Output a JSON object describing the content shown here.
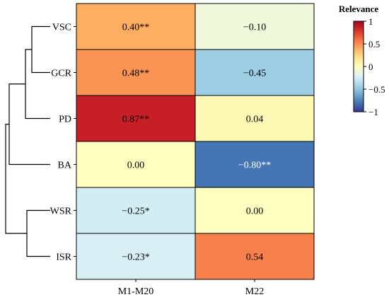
{
  "chart_data": {
    "type": "heatmap",
    "columns": [
      "M1-M20",
      "M22"
    ],
    "rows": [
      "VSC",
      "GCR",
      "PD",
      "BA",
      "WSR",
      "ISR"
    ],
    "values": [
      [
        0.4,
        -0.1
      ],
      [
        0.48,
        -0.45
      ],
      [
        0.87,
        0.04
      ],
      [
        0.0,
        -0.8
      ],
      [
        -0.25,
        0.0
      ],
      [
        -0.23,
        0.54
      ]
    ],
    "labels": [
      [
        "0.40**",
        "−0.10"
      ],
      [
        "0.48**",
        "−0.45"
      ],
      [
        "0.87**",
        "0.04"
      ],
      [
        "0.00",
        "−0.80**"
      ],
      [
        "−0.25*",
        "0.00"
      ],
      [
        "−0.23*",
        "0.54"
      ]
    ],
    "colorbar": {
      "title": "Relevance",
      "range": [
        -1,
        1
      ],
      "colormap": "RdYlBu_r",
      "ticks": [
        {
          "value": 1,
          "label": "1"
        },
        {
          "value": 0.5,
          "label": "0.5"
        },
        {
          "value": 0,
          "label": "0"
        },
        {
          "value": -0.5,
          "label": "−0.5"
        },
        {
          "value": -1,
          "label": "−1"
        }
      ]
    },
    "dendrogram": {
      "position": "left",
      "merges": [
        [
          "VSC",
          "GCR"
        ],
        [
          "VSC+GCR",
          "PD"
        ],
        [
          "WSR",
          "ISR"
        ],
        [
          "VSC+GCR+PD",
          "BA"
        ],
        [
          "top",
          "WSR+ISR"
        ]
      ]
    }
  }
}
